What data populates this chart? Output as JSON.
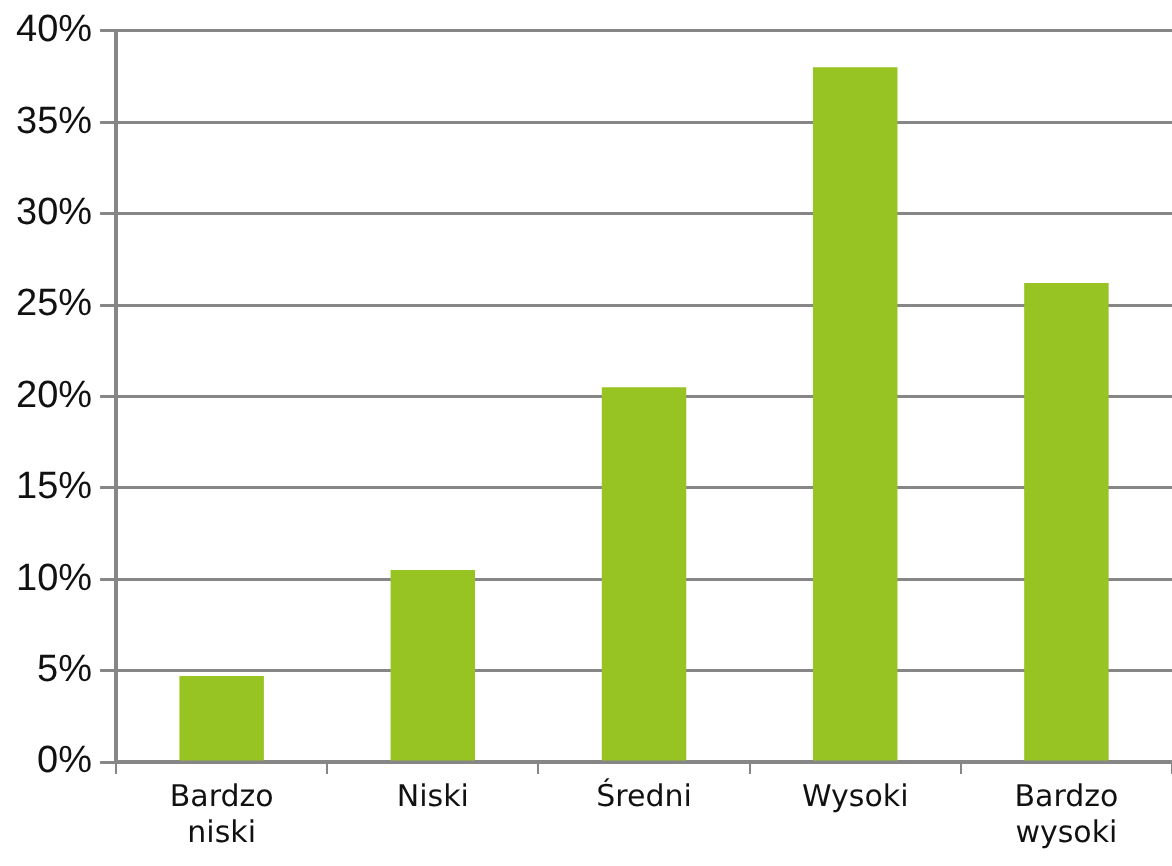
{
  "chart_data": {
    "type": "bar",
    "categories": [
      "Bardzo niski",
      "Niski",
      "Średni",
      "Wysoki",
      "Bardzo wysoki"
    ],
    "values": [
      4.7,
      10.5,
      20.5,
      38,
      26.2
    ],
    "color": "#97c423",
    "ylim": [
      0,
      40
    ],
    "yticks": [
      {
        "value": 0,
        "label": "0%"
      },
      {
        "value": 5,
        "label": "5%"
      },
      {
        "value": 10,
        "label": "10%"
      },
      {
        "value": 15,
        "label": "15%"
      },
      {
        "value": 20,
        "label": "20%"
      },
      {
        "value": 25,
        "label": "25%"
      },
      {
        "value": 30,
        "label": "30%"
      },
      {
        "value": 35,
        "label": "35%"
      },
      {
        "value": 40,
        "label": "40%"
      }
    ],
    "grid": "y",
    "legend": false
  }
}
